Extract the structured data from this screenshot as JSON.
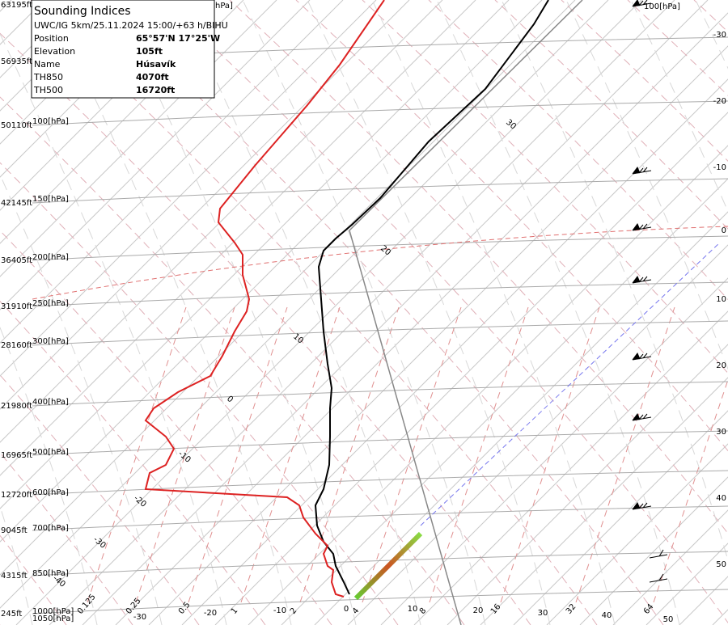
{
  "info_box": {
    "title": "Sounding Indices",
    "run": "UWC/IG 5km/25.11.2024 15:00/+63 h/BIHU",
    "rows": [
      [
        "Position",
        "65°57'N 17°25'W"
      ],
      [
        "Elevation",
        "105ft"
      ],
      [
        "Name",
        "Húsavík"
      ],
      [
        "TH850",
        "4070ft"
      ],
      [
        "TH500",
        "16720ft"
      ]
    ]
  },
  "top_labels": [
    "hPa]",
    "100[hPa]"
  ],
  "heights": [
    "63195ft",
    "56935ft",
    "50110ft",
    "42145ft",
    "36405ft",
    "31910ft",
    "28160ft",
    "21980ft",
    "16965ft",
    "12720ft",
    "9045ft",
    "4315ft",
    "245ft"
  ],
  "pressures": [
    "100[hPa]",
    "150[hPa]",
    "200[hPa]",
    "250[hPa]",
    "300[hPa]",
    "400[hPa]",
    "500[hPa]",
    "600[hPa]",
    "700[hPa]",
    "850[hPa]",
    "1000[hPa]",
    "1050[hPa]"
  ],
  "right_labels": [
    "-30",
    "-20",
    "-10",
    "0",
    "10",
    "20",
    "30",
    "40",
    "50"
  ],
  "mixing_ratios": [
    "0.125",
    "0.25",
    "0.5",
    "1",
    "2",
    "4",
    "8",
    "16",
    "32",
    "64"
  ],
  "temperatures": [
    "-30",
    "-20",
    "-10",
    "0",
    "10",
    "20",
    "30",
    "40",
    "50"
  ],
  "adiabat_labels": [
    "30",
    "20",
    "10",
    "0",
    "-10",
    "-20",
    "-30",
    "-40"
  ]
}
